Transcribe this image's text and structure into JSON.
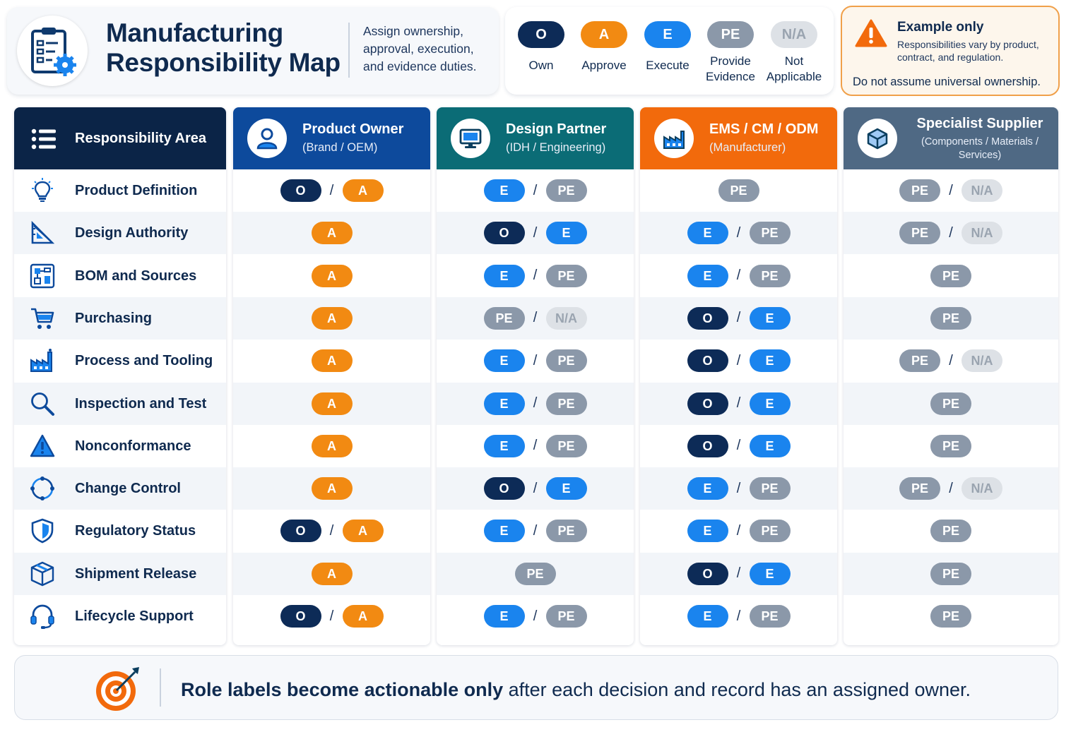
{
  "header": {
    "title_line1": "Manufacturing",
    "title_line2": "Responsibility Map",
    "desc_line1": "Assign ownership,",
    "desc_line2": "approval, execution,",
    "desc_line3": "and evidence duties."
  },
  "legend": [
    {
      "code": "O",
      "label1": "Own",
      "label2": "",
      "color": "#0d2b57"
    },
    {
      "code": "A",
      "label1": "Approve",
      "label2": "",
      "color": "#f28a12"
    },
    {
      "code": "E",
      "label1": "Execute",
      "label2": "",
      "color": "#1a84ee"
    },
    {
      "code": "PE",
      "label1": "Provide",
      "label2": "Evidence",
      "color": "#8b98a9"
    },
    {
      "code": "N/A",
      "label1": "Not",
      "label2": "Applicable",
      "color": "#dde1e6"
    }
  ],
  "example": {
    "title": "Example only",
    "desc": "Responsibilities vary by product, contract, and regulation.",
    "bottom": "Do not assume universal ownership."
  },
  "table": {
    "area_header": "Responsibility Area",
    "columns": [
      {
        "title": "Product Owner",
        "subtitle": "(Brand / OEM)",
        "color": "#0d4a9c",
        "icon": "person-icon"
      },
      {
        "title": "Design Partner",
        "subtitle": "(IDH / Engineering)",
        "color": "#0b6c76",
        "icon": "monitor-icon"
      },
      {
        "title": "EMS / CM / ODM",
        "subtitle": "(Manufacturer)",
        "color": "#f26a0c",
        "icon": "factory-icon"
      },
      {
        "title": "Specialist Supplier",
        "subtitle": "(Components / Materials / Services)",
        "color": "#4f6984",
        "icon": "box-icon"
      }
    ],
    "rows": [
      {
        "area": "Product Definition",
        "icon": "lightbulb-icon",
        "cells": [
          [
            "O",
            "A"
          ],
          [
            "E",
            "PE"
          ],
          [
            "PE"
          ],
          [
            "PE",
            "N/A"
          ]
        ]
      },
      {
        "area": "Design Authority",
        "icon": "drafting-icon",
        "cells": [
          [
            "A"
          ],
          [
            "O",
            "E"
          ],
          [
            "E",
            "PE"
          ],
          [
            "PE",
            "N/A"
          ]
        ]
      },
      {
        "area": "BOM and Sources",
        "icon": "circuit-icon",
        "cells": [
          [
            "A"
          ],
          [
            "E",
            "PE"
          ],
          [
            "E",
            "PE"
          ],
          [
            "PE"
          ]
        ]
      },
      {
        "area": "Purchasing",
        "icon": "cart-icon",
        "cells": [
          [
            "A"
          ],
          [
            "PE",
            "N/A"
          ],
          [
            "O",
            "E"
          ],
          [
            "PE"
          ]
        ]
      },
      {
        "area": "Process and Tooling",
        "icon": "factory-icon",
        "cells": [
          [
            "A"
          ],
          [
            "E",
            "PE"
          ],
          [
            "O",
            "E"
          ],
          [
            "PE",
            "N/A"
          ]
        ]
      },
      {
        "area": "Inspection and Test",
        "icon": "magnifier-icon",
        "cells": [
          [
            "A"
          ],
          [
            "E",
            "PE"
          ],
          [
            "O",
            "E"
          ],
          [
            "PE"
          ]
        ]
      },
      {
        "area": "Nonconformance",
        "icon": "warning-icon",
        "cells": [
          [
            "A"
          ],
          [
            "E",
            "PE"
          ],
          [
            "O",
            "E"
          ],
          [
            "PE"
          ]
        ]
      },
      {
        "area": "Change Control",
        "icon": "cycle-icon",
        "cells": [
          [
            "A"
          ],
          [
            "O",
            "E"
          ],
          [
            "E",
            "PE"
          ],
          [
            "PE",
            "N/A"
          ]
        ]
      },
      {
        "area": "Regulatory Status",
        "icon": "shield-icon",
        "cells": [
          [
            "O",
            "A"
          ],
          [
            "E",
            "PE"
          ],
          [
            "E",
            "PE"
          ],
          [
            "PE"
          ]
        ]
      },
      {
        "area": "Shipment Release",
        "icon": "package-icon",
        "cells": [
          [
            "A"
          ],
          [
            "PE"
          ],
          [
            "O",
            "E"
          ],
          [
            "PE"
          ]
        ]
      },
      {
        "area": "Lifecycle Support",
        "icon": "headset-icon",
        "cells": [
          [
            "O",
            "A"
          ],
          [
            "E",
            "PE"
          ],
          [
            "E",
            "PE"
          ],
          [
            "PE"
          ]
        ]
      }
    ]
  },
  "footer": {
    "bold": "Role labels become actionable only",
    "rest": " after each decision and record has an assigned owner."
  }
}
